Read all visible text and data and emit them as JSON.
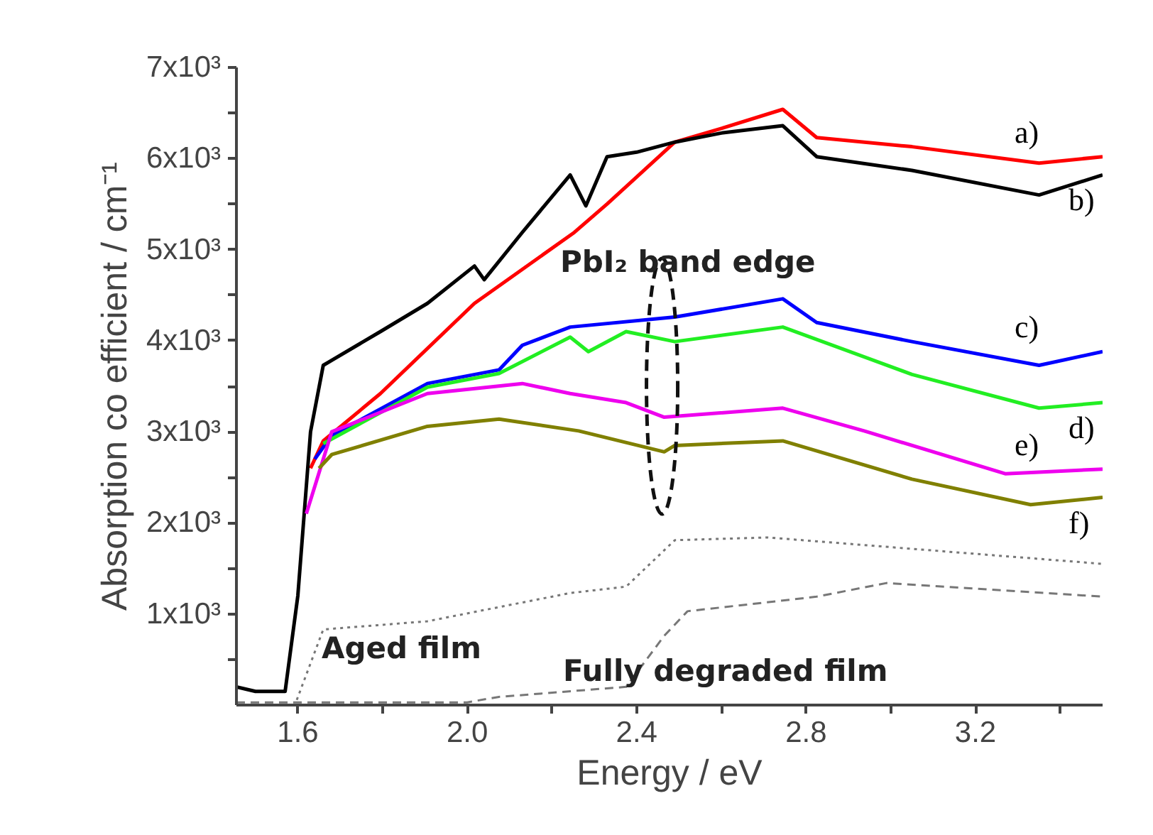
{
  "chart_data": {
    "type": "line",
    "xlabel": "Energy / eV",
    "ylabel": "Absorption co efficient / cm⁻¹",
    "xlim": [
      1.455,
      3.5
    ],
    "ylim": [
      0,
      7000
    ],
    "xticks": [
      {
        "value": 1.6,
        "label": "1.6"
      },
      {
        "value": 1.8,
        "label": null
      },
      {
        "value": 2.0,
        "label": "2.0"
      },
      {
        "value": 2.2,
        "label": null
      },
      {
        "value": 2.4,
        "label": "2.4"
      },
      {
        "value": 2.6,
        "label": null
      },
      {
        "value": 2.8,
        "label": "2.8"
      },
      {
        "value": 3.0,
        "label": null
      },
      {
        "value": 3.2,
        "label": "3.2"
      },
      {
        "value": 3.4,
        "label": null
      }
    ],
    "yticks": [
      {
        "value": 500,
        "label": null
      },
      {
        "value": 1000,
        "label": "1x10³"
      },
      {
        "value": 1500,
        "label": null
      },
      {
        "value": 2000,
        "label": "2x10³"
      },
      {
        "value": 2500,
        "label": null
      },
      {
        "value": 3000,
        "label": "3x10³"
      },
      {
        "value": 3500,
        "label": null
      },
      {
        "value": 4000,
        "label": "4x10³"
      },
      {
        "value": 4500,
        "label": null
      },
      {
        "value": 5000,
        "label": "5x10³"
      },
      {
        "value": 5500,
        "label": null
      },
      {
        "value": 6000,
        "label": "6x10³"
      },
      {
        "value": 6500,
        "label": null
      },
      {
        "value": 7000,
        "label": "7x10³"
      }
    ],
    "grid": false,
    "line_style": "solid",
    "annotations": [
      "PbI₂ band edge",
      "Aged film",
      "Fully degraded film"
    ],
    "series": [
      {
        "name": "a)",
        "color": "#ff0000",
        "x": [
          1.63,
          1.66,
          1.795,
          2.017,
          2.253,
          2.33,
          2.49,
          2.6,
          2.745,
          2.825,
          3.05,
          3.35,
          3.5
        ],
        "values": [
          2600,
          2900,
          3420,
          4410,
          5190,
          5500,
          6180,
          6330,
          6540,
          6230,
          6130,
          5950,
          6020
        ]
      },
      {
        "name": "b)",
        "color": "#000000",
        "x": [
          1.455,
          1.5,
          1.57,
          1.6,
          1.63,
          1.66,
          1.795,
          1.906,
          2.017,
          2.04,
          2.13,
          2.243,
          2.28,
          2.33,
          2.4,
          2.49,
          2.6,
          2.745,
          2.825,
          3.05,
          3.35,
          3.5
        ],
        "values": [
          200,
          150,
          150,
          1200,
          3000,
          3730,
          4100,
          4410,
          4820,
          4670,
          5190,
          5820,
          5480,
          6020,
          6070,
          6180,
          6280,
          6360,
          6020,
          5870,
          5600,
          5820
        ]
      },
      {
        "name": "c)",
        "color": "#0000ff",
        "x": [
          1.64,
          1.68,
          1.906,
          2.075,
          2.13,
          2.243,
          2.49,
          2.745,
          2.825,
          3.05,
          3.35,
          3.5
        ],
        "values": [
          2700,
          2960,
          3530,
          3680,
          3950,
          4150,
          4260,
          4460,
          4200,
          3990,
          3730,
          3880
        ]
      },
      {
        "name": "d)",
        "color": "#22ee22",
        "x": [
          1.66,
          1.906,
          2.075,
          2.243,
          2.286,
          2.375,
          2.49,
          2.745,
          3.05,
          3.35,
          3.5
        ],
        "values": [
          2870,
          3490,
          3640,
          4040,
          3880,
          4100,
          3990,
          4150,
          3630,
          3260,
          3320
        ]
      },
      {
        "name": "e)",
        "color": "#ee00ee",
        "x": [
          1.62,
          1.68,
          1.906,
          2.13,
          2.243,
          2.375,
          2.465,
          2.745,
          2.937,
          3.27,
          3.5
        ],
        "values": [
          2100,
          3000,
          3420,
          3530,
          3420,
          3320,
          3160,
          3260,
          3010,
          2540,
          2590
        ]
      },
      {
        "name": "f)",
        "color": "#808000",
        "x": [
          1.65,
          1.68,
          1.906,
          2.075,
          2.263,
          2.465,
          2.49,
          2.745,
          3.05,
          3.33,
          3.5
        ],
        "values": [
          2600,
          2750,
          3060,
          3140,
          3010,
          2780,
          2850,
          2900,
          2480,
          2200,
          2280
        ]
      },
      {
        "color": "#777777",
        "line_style": "dotted",
        "x": [
          1.455,
          1.593,
          1.66,
          1.906,
          2.243,
          2.375,
          2.49,
          2.71,
          3.5
        ],
        "values": [
          0,
          0,
          830,
          920,
          1230,
          1300,
          1810,
          1840,
          1550
        ]
      },
      {
        "color": "#777777",
        "line_style": "dashed",
        "x": [
          1.455,
          2.0,
          2.075,
          2.375,
          2.465,
          2.52,
          2.825,
          2.99,
          3.5
        ],
        "values": [
          30,
          30,
          90,
          200,
          760,
          1030,
          1190,
          1340,
          1190
        ]
      }
    ]
  }
}
